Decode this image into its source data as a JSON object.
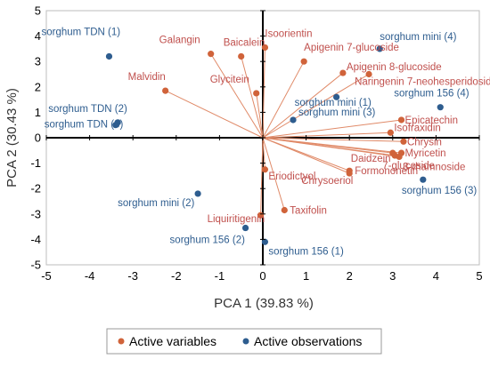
{
  "chart_data": {
    "type": "scatter",
    "xlabel": "PCA 1 (39.83 %)",
    "ylabel": "PCA 2 (30.43 %)",
    "xlim": [
      -5,
      5
    ],
    "ylim": [
      -5,
      5
    ],
    "xticks": [
      "-5",
      "-4",
      "-3",
      "-2",
      "-1",
      "0",
      "1",
      "2",
      "3",
      "4",
      "5"
    ],
    "yticks": [
      "5",
      "4",
      "3",
      "2",
      "1",
      "0",
      "-1",
      "-2",
      "-3",
      "-4",
      "-5"
    ],
    "legend_position": "bottom",
    "series": [
      {
        "name": "Active variables",
        "color": "#d0633a",
        "points": [
          {
            "label": "Isoorientin",
            "x": 0.05,
            "y": 3.55
          },
          {
            "label": "Baicalein",
            "x": -0.5,
            "y": 3.2
          },
          {
            "label": "Galangin",
            "x": -1.2,
            "y": 3.3
          },
          {
            "label": "Apigenin 7-glucoside",
            "x": 0.95,
            "y": 3.0
          },
          {
            "label": "Apigenin 8-glucoside",
            "x": 1.85,
            "y": 2.55
          },
          {
            "label": "Naringenin 7-neohesperidoside",
            "x": 2.45,
            "y": 2.5
          },
          {
            "label": "Malvidin",
            "x": -2.25,
            "y": 1.85
          },
          {
            "label": "Glycitein",
            "x": -0.15,
            "y": 1.75
          },
          {
            "label": "Epicatechin",
            "x": 3.2,
            "y": 0.7
          },
          {
            "label": "Isofraxidin",
            "x": 2.95,
            "y": 0.2
          },
          {
            "label": "Chrysin",
            "x": 3.25,
            "y": -0.15
          },
          {
            "label": "Myricetin",
            "x": 3.2,
            "y": -0.6
          },
          {
            "label": "3-rhamnoside",
            "x": 3.15,
            "y": -0.75
          },
          {
            "label": "Daidzein",
            "x": 3.0,
            "y": -0.6
          },
          {
            "label": "Formononetin",
            "x": 2.0,
            "y": -1.3
          },
          {
            "label": "7-glucoside",
            "x": 3.05,
            "y": -0.7
          },
          {
            "label": "Eriodictyol",
            "x": 0.05,
            "y": -1.25
          },
          {
            "label": "Chrysoeriol",
            "x": 2.0,
            "y": -1.4
          },
          {
            "label": "Taxifolin",
            "x": 0.5,
            "y": -2.85
          },
          {
            "label": "Liquiritigenin",
            "x": -0.05,
            "y": -3.05
          }
        ]
      },
      {
        "name": "Active observations",
        "color": "#2e5d8f",
        "points": [
          {
            "label": "sorghum TDN (1)",
            "x": -3.55,
            "y": 3.2
          },
          {
            "label": "sorghum mini (4)",
            "x": 2.7,
            "y": 3.5
          },
          {
            "label": "sorghum mini (1)",
            "x": 1.7,
            "y": 1.6
          },
          {
            "label": "sorghum 156 (4)",
            "x": 4.1,
            "y": 1.2
          },
          {
            "label": "sorghum mini (3)",
            "x": 0.7,
            "y": 0.7
          },
          {
            "label": "sorghum TDN (2)",
            "x": -3.35,
            "y": 0.6
          },
          {
            "label": "sorghum TDN (3)",
            "x": -3.4,
            "y": 0.5
          },
          {
            "label": "sorghum 156 (3)",
            "x": 3.7,
            "y": -1.65
          },
          {
            "label": "sorghum mini (2)",
            "x": -1.5,
            "y": -2.2
          },
          {
            "label": "sorghum 156 (2)",
            "x": -0.4,
            "y": -3.55
          },
          {
            "label": "sorghum 156 (1)",
            "x": 0.05,
            "y": -4.1
          }
        ]
      }
    ]
  }
}
